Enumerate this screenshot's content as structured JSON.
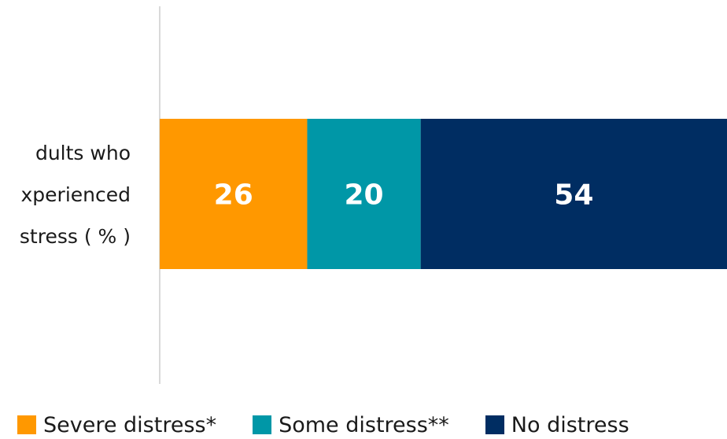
{
  "chart_data": {
    "type": "bar",
    "orientation": "horizontal",
    "stacked": true,
    "categories": [
      "dults who xperienced stress ( % )"
    ],
    "category_label_lines": [
      "dults who",
      "xperienced",
      "stress ( % )"
    ],
    "series": [
      {
        "name": "Severe distress*",
        "values": [
          26
        ],
        "color": "#FF9800"
      },
      {
        "name": "Some distress**",
        "values": [
          20
        ],
        "color": "#0097A7"
      },
      {
        "name": "No distress",
        "values": [
          54
        ],
        "color": "#002D62"
      }
    ],
    "data_labels": [
      "26",
      "20",
      "54"
    ],
    "xlim": [
      0,
      100
    ],
    "legend_position": "bottom",
    "grid": false
  }
}
